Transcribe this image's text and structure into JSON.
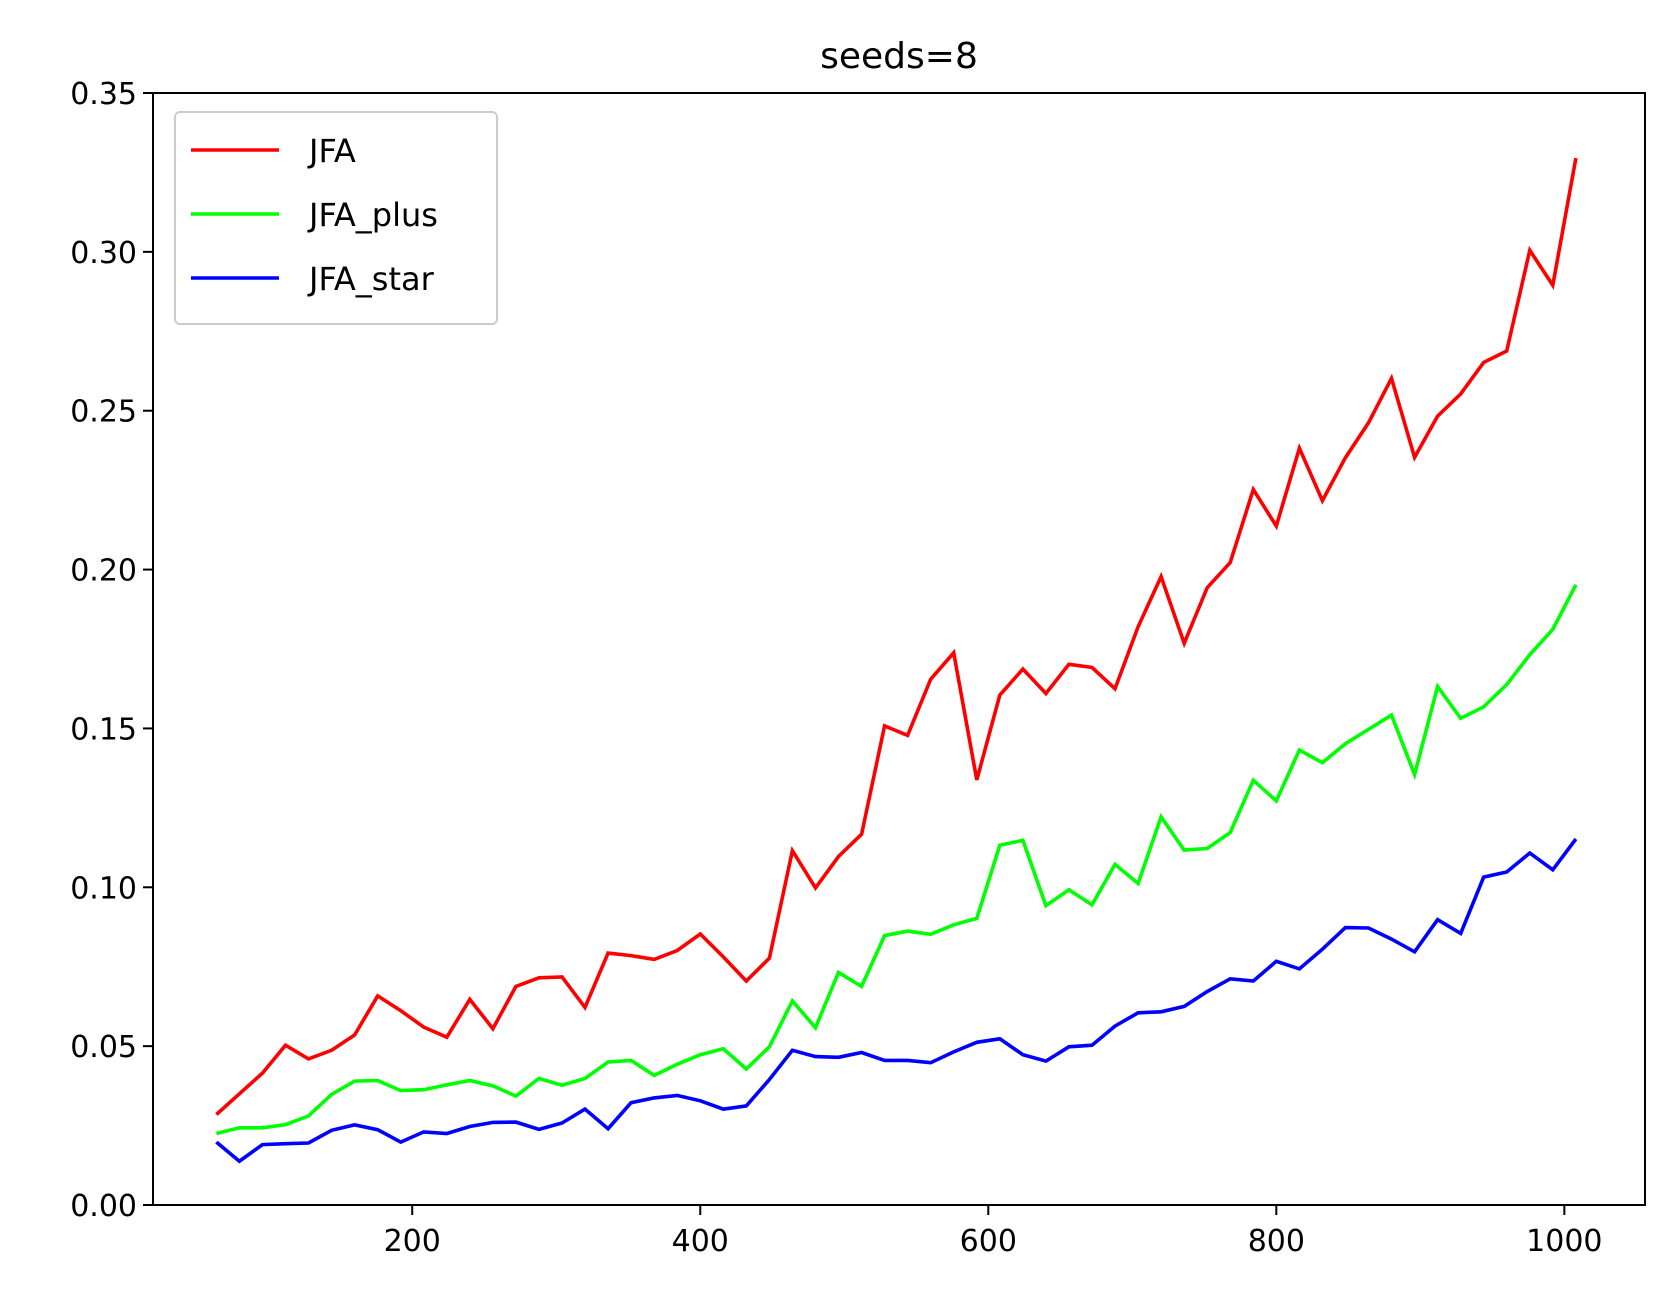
{
  "chart_data": {
    "type": "line",
    "title": "seeds=8",
    "xlabel": "",
    "ylabel": "",
    "xlim": [
      20,
      1056
    ],
    "ylim": [
      0,
      0.35
    ],
    "xticks": [
      "200",
      "400",
      "600",
      "800",
      "1000"
    ],
    "yticks": [
      "0.00",
      "0.05",
      "0.10",
      "0.15",
      "0.20",
      "0.25",
      "0.30",
      "0.35"
    ],
    "grid": false,
    "legend": "top-left",
    "x": [
      64,
      80,
      96,
      112,
      128,
      144,
      160,
      176,
      192,
      208,
      224,
      240,
      256,
      272,
      288,
      304,
      320,
      336,
      352,
      368,
      384,
      400,
      416,
      432,
      448,
      464,
      480,
      496,
      512,
      528,
      544,
      560,
      576,
      592,
      608,
      624,
      640,
      656,
      672,
      688,
      704,
      720,
      736,
      752,
      768,
      784,
      800,
      816,
      832,
      848,
      864,
      880,
      896,
      912,
      928,
      944,
      960,
      976,
      992,
      1008
    ],
    "series": [
      {
        "name": "JFA",
        "color": "#ff0000",
        "values": [
          0.0285,
          0.035,
          0.0415,
          0.0503,
          0.046,
          0.0487,
          0.0535,
          0.0658,
          0.0612,
          0.056,
          0.0528,
          0.0647,
          0.0555,
          0.0688,
          0.0715,
          0.0718,
          0.0622,
          0.0793,
          0.0785,
          0.0773,
          0.0801,
          0.0853,
          0.0781,
          0.0705,
          0.0777,
          0.1115,
          0.0998,
          0.1097,
          0.1167,
          0.1508,
          0.1478,
          0.1655,
          0.1738,
          0.1338,
          0.1605,
          0.1687,
          0.161,
          0.1702,
          0.1692,
          0.1625,
          0.182,
          0.1978,
          0.1768,
          0.1943,
          0.2022,
          0.2252,
          0.2137,
          0.2382,
          0.2217,
          0.2352,
          0.2462,
          0.2602,
          0.2353,
          0.2483,
          0.2553,
          0.2652,
          0.2688,
          0.3005,
          0.2895,
          0.3295
        ]
      },
      {
        "name": "JFA_plus",
        "color": "#00ff00",
        "values": [
          0.0225,
          0.0243,
          0.0243,
          0.0253,
          0.028,
          0.0348,
          0.039,
          0.0392,
          0.036,
          0.0363,
          0.0378,
          0.0392,
          0.0375,
          0.0343,
          0.0398,
          0.0377,
          0.0398,
          0.045,
          0.0455,
          0.0408,
          0.0443,
          0.0473,
          0.0492,
          0.0428,
          0.0498,
          0.0642,
          0.0558,
          0.0732,
          0.0688,
          0.0848,
          0.0862,
          0.0852,
          0.0882,
          0.0902,
          0.1132,
          0.1148,
          0.0942,
          0.0992,
          0.0945,
          0.1072,
          0.1012,
          0.1222,
          0.1117,
          0.1122,
          0.1172,
          0.1337,
          0.1272,
          0.1432,
          0.1392,
          0.1452,
          0.1497,
          0.1542,
          0.1355,
          0.1632,
          0.1532,
          0.1568,
          0.1638,
          0.1732,
          0.1812,
          0.1952
        ]
      },
      {
        "name": "JFA_star",
        "color": "#0000ff",
        "values": [
          0.0198,
          0.0138,
          0.019,
          0.0193,
          0.0195,
          0.0235,
          0.0252,
          0.0237,
          0.0198,
          0.023,
          0.0225,
          0.0247,
          0.026,
          0.0261,
          0.0238,
          0.0258,
          0.0302,
          0.024,
          0.0322,
          0.0337,
          0.0345,
          0.0328,
          0.0302,
          0.0312,
          0.0395,
          0.0487,
          0.0467,
          0.0465,
          0.048,
          0.0455,
          0.0455,
          0.0448,
          0.0482,
          0.0512,
          0.0523,
          0.0473,
          0.0453,
          0.0498,
          0.0503,
          0.0563,
          0.0605,
          0.0608,
          0.0625,
          0.0672,
          0.0712,
          0.0705,
          0.0767,
          0.0743,
          0.0805,
          0.0873,
          0.0872,
          0.0837,
          0.0797,
          0.0898,
          0.0855,
          0.1032,
          0.1048,
          0.1108,
          0.1055,
          0.1152
        ]
      }
    ]
  }
}
